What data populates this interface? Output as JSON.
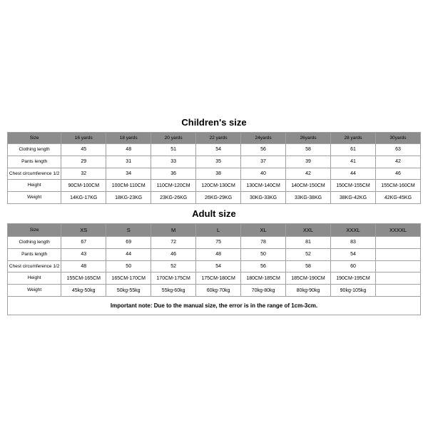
{
  "children": {
    "title": "Children's size",
    "columns": [
      "Size",
      "16 yards",
      "18 yards",
      "20 yards",
      "22 yards",
      "24yards",
      "26yards",
      "28 yards",
      "30yards"
    ],
    "rows": [
      {
        "label": "Clothing length",
        "values": [
          "45",
          "48",
          "51",
          "54",
          "56",
          "58",
          "61",
          "63"
        ]
      },
      {
        "label": "Pants length",
        "values": [
          "29",
          "31",
          "33",
          "35",
          "37",
          "39",
          "41",
          "42"
        ]
      },
      {
        "label": "Chest circumference 1/2",
        "values": [
          "32",
          "34",
          "36",
          "38",
          "40",
          "42",
          "44",
          "46"
        ]
      },
      {
        "label": "Height",
        "values": [
          "90CM-100CM",
          "100CM-110CM",
          "110CM-120CM",
          "120CM-130CM",
          "130CM-140CM",
          "140CM-150CM",
          "150CM-155CM",
          "155CM-160CM"
        ]
      },
      {
        "label": "Weight",
        "values": [
          "14KG-17KG",
          "18KG-23KG",
          "23KG-26KG",
          "26KG-29KG",
          "30KG-33KG",
          "33KG-38KG",
          "38KG-42KG",
          "42KG-45KG"
        ]
      }
    ]
  },
  "adult": {
    "title": "Adult size",
    "columns": [
      "Size",
      "XS",
      "S",
      "M",
      "L",
      "XL",
      "XXL",
      "XXXL",
      "XXXXL"
    ],
    "rows": [
      {
        "label": "Clothing length",
        "values": [
          "67",
          "69",
          "72",
          "75",
          "78",
          "81",
          "83",
          ""
        ]
      },
      {
        "label": "Pants length",
        "values": [
          "43",
          "44",
          "46",
          "48",
          "50",
          "52",
          "54",
          ""
        ]
      },
      {
        "label": "Chest circumference 1/2",
        "values": [
          "48",
          "50",
          "52",
          "54",
          "56",
          "58",
          "60",
          ""
        ]
      },
      {
        "label": "Height",
        "values": [
          "155CM-165CM",
          "165CM-170CM",
          "170CM-175CM",
          "175CM-180CM",
          "180CM-185CM",
          "185CM-190CM",
          "190CM-195CM",
          ""
        ]
      },
      {
        "label": "Weight",
        "values": [
          "45kg-50kg",
          "50kg-55kg",
          "55kg-60kg",
          "60kg-70kg",
          "70kg-80kg",
          "80kg-90kg",
          "90kg-105kg",
          ""
        ]
      }
    ]
  },
  "note": "Important note: Due to the manual size, the error is in the range of 1cm-3cm.",
  "style": {
    "header_bg": "#8c8c8c",
    "border_color": "#a0a0a0",
    "bg": "#ffffff",
    "title_fontsize": 13,
    "cell_fontsize": 7
  }
}
